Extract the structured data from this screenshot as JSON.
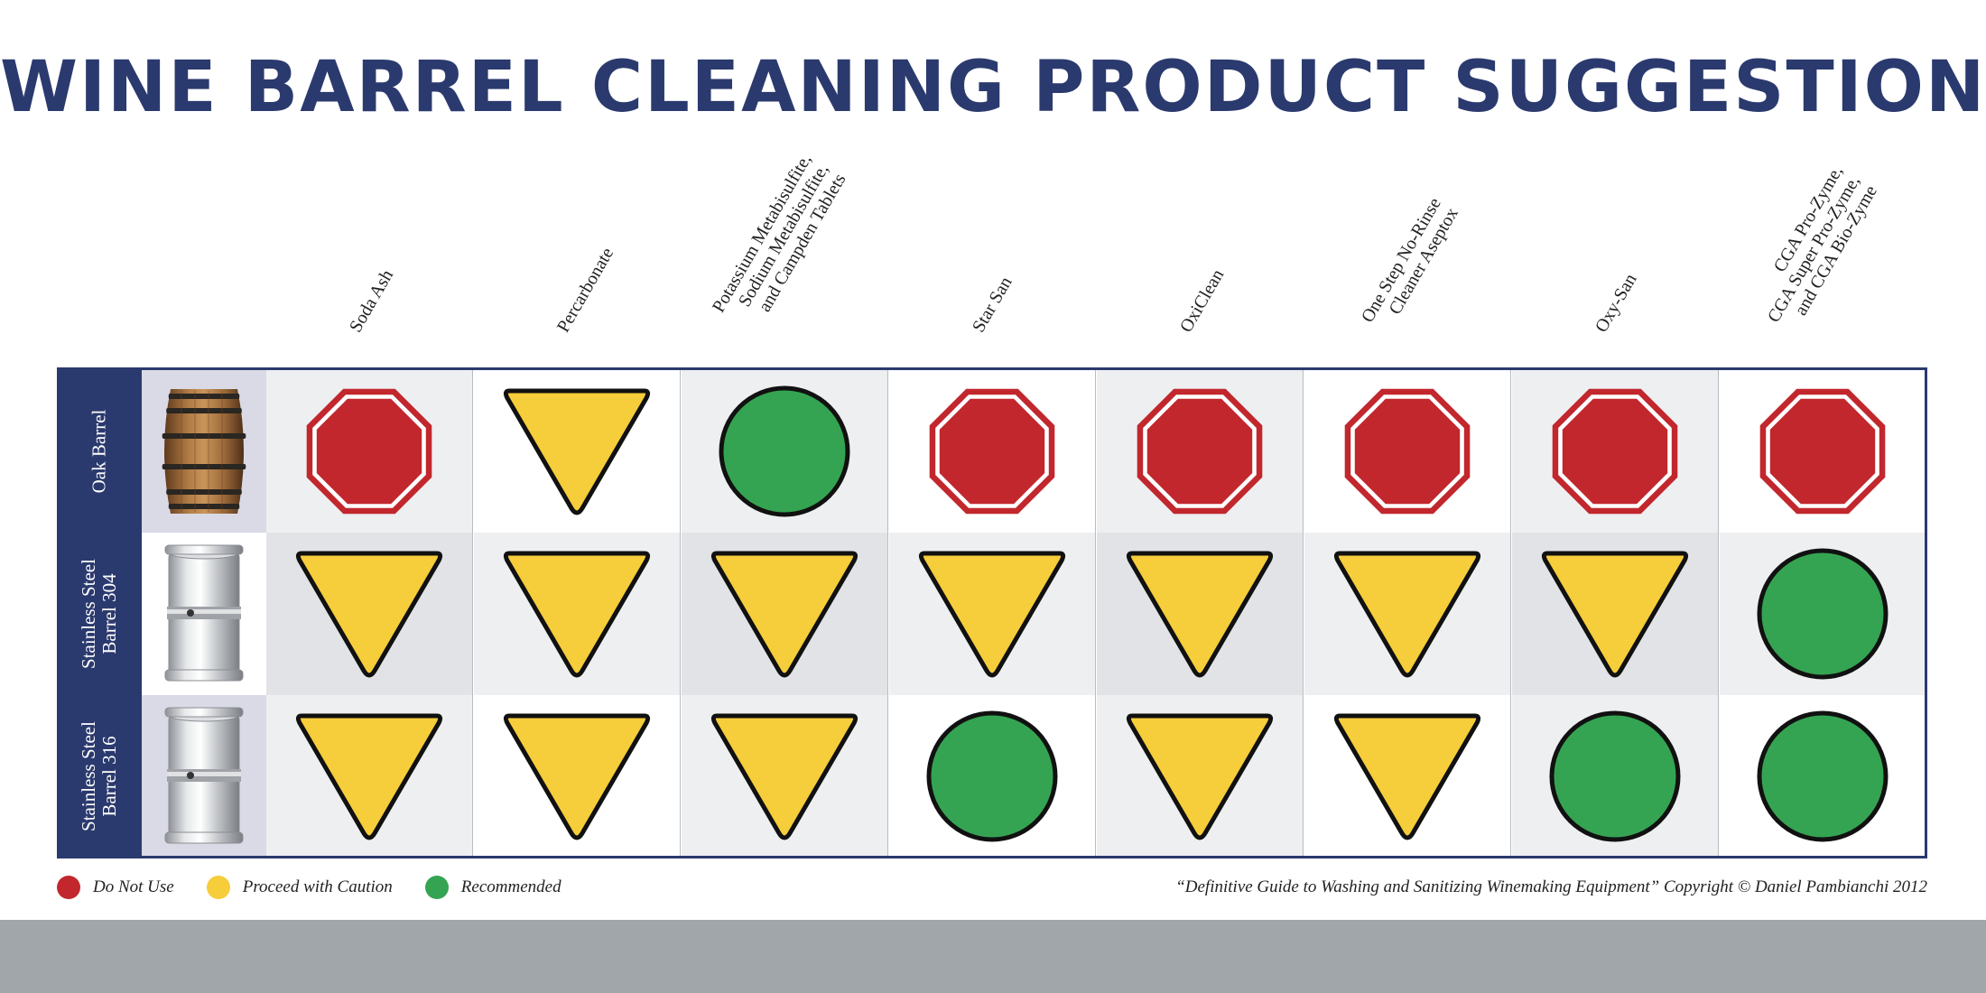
{
  "title": "WINE BARREL CLEANING PRODUCT SUGGESTIONS",
  "colors": {
    "navy": "#2b3a6e",
    "do_not_use": "#c1272d",
    "caution": "#f6cd3a",
    "recommended": "#35a452"
  },
  "columns": [
    {
      "lines": [
        "Soda Ash"
      ]
    },
    {
      "lines": [
        "Percarbonate"
      ]
    },
    {
      "lines": [
        "Potassium Metabisulfite,",
        "Sodium Metabisulfite,",
        "and Campden Tablets"
      ]
    },
    {
      "lines": [
        "Star San"
      ]
    },
    {
      "lines": [
        "OxiClean"
      ]
    },
    {
      "lines": [
        "One Step No-Rinse",
        "Cleaner Aseptox"
      ]
    },
    {
      "lines": [
        "Oxy-San"
      ]
    },
    {
      "lines": [
        "CGA Pro-Zyme,",
        "CGA Super Pro-Zyme,",
        "and CGA Bio-Zyme"
      ]
    }
  ],
  "rows": [
    {
      "lines": [
        "Oak Barrel"
      ],
      "image": "oak-barrel-image",
      "ratings": [
        "do-not-use",
        "caution",
        "recommended",
        "do-not-use",
        "do-not-use",
        "do-not-use",
        "do-not-use",
        "do-not-use"
      ]
    },
    {
      "lines": [
        "Stainless Steel",
        "Barrel 304"
      ],
      "image": "stainless-barrel-image",
      "ratings": [
        "caution",
        "caution",
        "caution",
        "caution",
        "caution",
        "caution",
        "caution",
        "recommended"
      ]
    },
    {
      "lines": [
        "Stainless Steel",
        "Barrel 316"
      ],
      "image": "stainless-barrel-image",
      "ratings": [
        "caution",
        "caution",
        "caution",
        "recommended",
        "caution",
        "caution",
        "recommended",
        "recommended"
      ]
    }
  ],
  "legend": [
    {
      "key": "do-not-use",
      "label": "Do Not Use",
      "color": "#c1272d"
    },
    {
      "key": "caution",
      "label": "Proceed with Caution",
      "color": "#f6cd3a"
    },
    {
      "key": "recommended",
      "label": "Recommended",
      "color": "#35a452"
    }
  ],
  "credit": "“Definitive Guide to Washing and Sanitizing Winemaking Equipment” Copyright © Daniel Pambianchi 2012"
}
